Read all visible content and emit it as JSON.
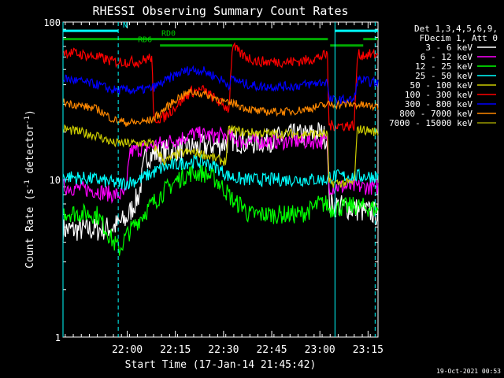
{
  "chart_data": {
    "type": "line",
    "title": "RHESSI Observing Summary Count Rates",
    "xlabel": "Start Time (17-Jan-14 21:45:42)",
    "ylabel": "Count Rate (s",
    "ylabel_sup": "-1",
    "ylabel_tail": " detector",
    "ylabel_end": ")",
    "yscale": "log",
    "ylim": [
      1,
      100
    ],
    "xlim_min": [
      -5.7,
      92.4
    ],
    "y_ticks": [
      {
        "value": 1,
        "label": "1"
      },
      {
        "value": 10,
        "label": "10"
      },
      {
        "value": 100,
        "label": "100"
      }
    ],
    "x_ticks": [
      {
        "value": 14.3,
        "label": "22:00"
      },
      {
        "value": 29.3,
        "label": "22:15"
      },
      {
        "value": 44.3,
        "label": "22:30"
      },
      {
        "value": 59.3,
        "label": "22:45"
      },
      {
        "value": 74.3,
        "label": "23:00"
      },
      {
        "value": 89.3,
        "label": "23:15"
      }
    ],
    "legend_header": [
      "Det 1,3,4,5,6,9,",
      "FDecim 1, Att 0"
    ],
    "series": [
      {
        "name": "3 - 6 keV",
        "color": "#ffffff",
        "knots": [
          [
            -5.7,
            4.8
          ],
          [
            2,
            4.8
          ],
          [
            5,
            4.8
          ],
          [
            10,
            5
          ],
          [
            14,
            5.6
          ],
          [
            18,
            8
          ],
          [
            20,
            14
          ],
          [
            25,
            15
          ],
          [
            35,
            16
          ],
          [
            45,
            17
          ],
          [
            47,
            18
          ],
          [
            52,
            17
          ],
          [
            60,
            18
          ],
          [
            64,
            19
          ],
          [
            70,
            19
          ],
          [
            74,
            20
          ],
          [
            76.8,
            18
          ],
          [
            77,
            7
          ],
          [
            85,
            6.5
          ],
          [
            90,
            6.2
          ],
          [
            92.4,
            6
          ]
        ]
      },
      {
        "name": "6 - 12 keV",
        "color": "#ff00ff",
        "knots": [
          [
            -5.7,
            9
          ],
          [
            5,
            8.5
          ],
          [
            10,
            8
          ],
          [
            14,
            8
          ],
          [
            15,
            15
          ],
          [
            20,
            16
          ],
          [
            30,
            18
          ],
          [
            35,
            19.5
          ],
          [
            40,
            19
          ],
          [
            45,
            19
          ],
          [
            50,
            17.5
          ],
          [
            60,
            17.5
          ],
          [
            70,
            17.5
          ],
          [
            76.8,
            17.5
          ],
          [
            77,
            9
          ],
          [
            85,
            9
          ],
          [
            92.4,
            9
          ]
        ]
      },
      {
        "name": "12 - 25 keV",
        "color": "#00ff00",
        "knots": [
          [
            -5.7,
            6.2
          ],
          [
            5,
            6
          ],
          [
            10,
            4
          ],
          [
            12,
            3.6
          ],
          [
            14,
            4.4
          ],
          [
            18,
            5.6
          ],
          [
            22,
            7
          ],
          [
            26,
            8.5
          ],
          [
            30,
            10
          ],
          [
            34,
            11
          ],
          [
            38,
            11
          ],
          [
            42,
            10
          ],
          [
            46,
            8
          ],
          [
            48,
            7
          ],
          [
            50,
            7
          ],
          [
            52,
            6
          ],
          [
            60,
            6
          ],
          [
            68,
            6
          ],
          [
            72,
            6.5
          ],
          [
            74,
            7
          ],
          [
            76.8,
            7
          ],
          [
            77,
            6.5
          ],
          [
            85,
            6.8
          ],
          [
            92.4,
            6.5
          ]
        ]
      },
      {
        "name": "25 - 50 keV",
        "color": "#00ffff",
        "knots": [
          [
            -5.7,
            10.5
          ],
          [
            5,
            10
          ],
          [
            10,
            9.5
          ],
          [
            14,
            9.5
          ],
          [
            18,
            10
          ],
          [
            22,
            11
          ],
          [
            26,
            12
          ],
          [
            30,
            12.5
          ],
          [
            34,
            13
          ],
          [
            38,
            13
          ],
          [
            42,
            12
          ],
          [
            46,
            10.5
          ],
          [
            50,
            10
          ],
          [
            60,
            10
          ],
          [
            70,
            10
          ],
          [
            76.8,
            10
          ],
          [
            77,
            10.5
          ],
          [
            85,
            10.5
          ],
          [
            92.4,
            10.5
          ]
        ]
      },
      {
        "name": "50 - 100 keV",
        "color": "#cccc00",
        "knots": [
          [
            -5.7,
            21
          ],
          [
            5,
            19
          ],
          [
            10,
            17
          ],
          [
            14,
            17
          ],
          [
            18,
            17
          ],
          [
            20,
            17
          ],
          [
            22,
            17
          ],
          [
            26,
            13
          ],
          [
            30,
            14.5
          ],
          [
            34,
            15
          ],
          [
            38,
            14.5
          ],
          [
            42,
            13.5
          ],
          [
            45,
            13
          ],
          [
            46,
            21
          ],
          [
            50,
            20
          ],
          [
            60,
            19.5
          ],
          [
            70,
            19.5
          ],
          [
            76.8,
            19.5
          ],
          [
            77,
            9.5
          ],
          [
            85,
            9.5
          ],
          [
            86,
            21
          ],
          [
            92.4,
            20
          ]
        ]
      },
      {
        "name": "100 - 300 keV",
        "color": "#ff0000",
        "knots": [
          [
            -5.7,
            65
          ],
          [
            5,
            60
          ],
          [
            10,
            56
          ],
          [
            14,
            56
          ],
          [
            18,
            56
          ],
          [
            20,
            58
          ],
          [
            22,
            60
          ],
          [
            22.5,
            24
          ],
          [
            26,
            25
          ],
          [
            30,
            30
          ],
          [
            34,
            36
          ],
          [
            38,
            37
          ],
          [
            42,
            32
          ],
          [
            46,
            28
          ],
          [
            47,
            70
          ],
          [
            50,
            62
          ],
          [
            55,
            56
          ],
          [
            60,
            56
          ],
          [
            65,
            56
          ],
          [
            70,
            57
          ],
          [
            76.8,
            62
          ],
          [
            77,
            22
          ],
          [
            85,
            22
          ],
          [
            86,
            62
          ],
          [
            92.4,
            62
          ]
        ]
      },
      {
        "name": "300 - 800 keV",
        "color": "#0000ff",
        "knots": [
          [
            -5.7,
            44
          ],
          [
            5,
            40
          ],
          [
            10,
            37
          ],
          [
            14,
            37
          ],
          [
            18,
            37
          ],
          [
            22,
            38
          ],
          [
            26,
            42
          ],
          [
            30,
            47
          ],
          [
            34,
            50
          ],
          [
            38,
            49
          ],
          [
            42,
            45
          ],
          [
            46,
            40
          ],
          [
            47,
            44
          ],
          [
            50,
            41
          ],
          [
            55,
            39
          ],
          [
            60,
            39
          ],
          [
            65,
            39
          ],
          [
            70,
            40
          ],
          [
            76.8,
            42
          ],
          [
            77,
            32
          ],
          [
            85,
            32
          ],
          [
            86,
            43
          ],
          [
            92.4,
            41
          ]
        ]
      },
      {
        "name": "800 - 7000 keV",
        "color": "#ff8800",
        "knots": [
          [
            -5.7,
            31
          ],
          [
            5,
            28
          ],
          [
            10,
            24
          ],
          [
            14,
            23
          ],
          [
            18,
            23
          ],
          [
            22,
            24
          ],
          [
            26,
            28
          ],
          [
            30,
            33
          ],
          [
            34,
            36
          ],
          [
            38,
            35
          ],
          [
            42,
            33
          ],
          [
            46,
            30
          ],
          [
            47,
            31
          ],
          [
            50,
            29
          ],
          [
            55,
            27
          ],
          [
            60,
            27
          ],
          [
            65,
            27
          ],
          [
            70,
            28
          ],
          [
            76.8,
            30
          ],
          [
            77,
            30
          ],
          [
            85,
            30
          ],
          [
            92.4,
            29
          ]
        ]
      },
      {
        "name": "7000 - 15000 keV",
        "color": "#999900",
        "knots": []
      }
    ],
    "overlays": [
      {
        "label": "N",
        "color": "#00ffff",
        "kind": "bar",
        "x0": -5.7,
        "x1": 11.5,
        "y": 88
      },
      {
        "label": "",
        "color": "#00ffff",
        "kind": "bar",
        "x0": 79,
        "x1": 92.4,
        "y": 88
      },
      {
        "label": "RD0",
        "color": "#00aa00",
        "kind": "bar",
        "x0": -5.7,
        "x1": 76.8,
        "y": 78
      },
      {
        "label": "RD6",
        "color": "#00aa00",
        "kind": "bar",
        "x0": 24.5,
        "x1": 47,
        "y": 71
      },
      {
        "label": "",
        "color": "#00aa00",
        "kind": "bar",
        "x0": 77.5,
        "x1": 87.8,
        "y": 71
      },
      {
        "label": "",
        "color": "#00aa00",
        "kind": "bar",
        "x0": 87.8,
        "x1": 92.4,
        "y": 78
      }
    ],
    "vlines": [
      {
        "x": -5.7,
        "color": "#00ffff",
        "dashed": false
      },
      {
        "x": 11.5,
        "color": "#00ffff",
        "dashed": true
      },
      {
        "x": 79,
        "color": "#00ffff",
        "dashed": false
      },
      {
        "x": 91.5,
        "color": "#00ffff",
        "dashed": true
      }
    ],
    "timestamp": "19-Oct-2021 00:53"
  }
}
